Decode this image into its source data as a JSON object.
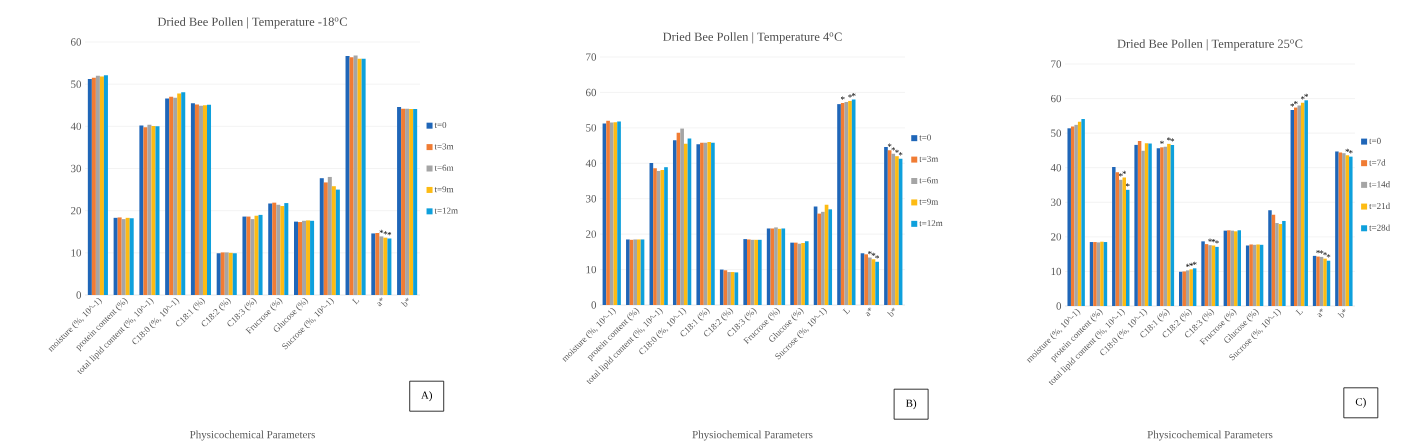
{
  "chart_data": [
    {
      "type": "bar",
      "title": "Dried Bee Pollen | Temperature -18$^{o}$C",
      "xlabel": "Physicochemical Parameters",
      "categories": [
        "moisture (%, 10^-1)",
        "protein content (%)",
        "total lipid content (%, 10^-1)",
        "C18:0 (%, 10^-1)",
        "C18:1 (%)",
        "C18:2 (%)",
        "C18:3 (%)",
        "Frucrose (%)",
        "Glucose (%)",
        "Sucrose (%, 10^-1)",
        "L",
        "a*",
        "b*"
      ],
      "series": [
        {
          "name": "t=0",
          "color": "#1f66b8",
          "values": [
            51.2,
            18.3,
            40.2,
            46.6,
            45.5,
            9.9,
            18.6,
            21.7,
            17.4,
            27.7,
            56.7,
            14.6,
            44.6
          ]
        },
        {
          "name": "t=3m",
          "color": "#f07c34",
          "values": [
            51.5,
            18.4,
            39.8,
            47.0,
            45.2,
            10.1,
            18.6,
            21.9,
            17.3,
            26.7,
            56.4,
            14.7,
            44.2
          ]
        },
        {
          "name": "t=6m",
          "color": "#a5a5a5",
          "values": [
            52.0,
            18.0,
            40.4,
            46.8,
            44.9,
            10.1,
            18.0,
            21.4,
            17.6,
            28.0,
            56.8,
            13.9,
            44.2
          ],
          "value_labels": [
            null,
            null,
            null,
            null,
            null,
            null,
            null,
            null,
            null,
            null,
            null,
            "*",
            null
          ]
        },
        {
          "name": "t=9m",
          "color": "#fdbb13",
          "values": [
            51.8,
            18.3,
            40.1,
            47.8,
            45.0,
            10.0,
            18.8,
            21.1,
            17.7,
            25.8,
            56.0,
            13.6,
            44.1
          ],
          "value_labels": [
            null,
            null,
            null,
            null,
            null,
            null,
            null,
            null,
            null,
            null,
            null,
            "*",
            null
          ]
        },
        {
          "name": "t=12m",
          "color": "#0ea0dc",
          "values": [
            52.1,
            18.2,
            40.0,
            48.1,
            45.1,
            9.9,
            19.0,
            21.8,
            17.6,
            25.0,
            56.0,
            13.4,
            44.1
          ],
          "value_labels": [
            null,
            null,
            null,
            null,
            null,
            null,
            null,
            null,
            null,
            null,
            null,
            "*",
            null
          ]
        }
      ],
      "ylim": [
        0,
        60
      ],
      "yticks": [
        0,
        10,
        20,
        30,
        40,
        50,
        60
      ],
      "grid": "y",
      "legend": "right",
      "annotations": [
        "A)"
      ]
    },
    {
      "type": "bar",
      "title": "Dried Bee Pollen | Temperature 4$^{o}$C",
      "xlabel": "Physiochemical Parameters",
      "categories": [
        "moisture (%, 10^-1)",
        "protein content (%)",
        "total lipid content (%, 10^-1)",
        "C18:0 (%, 10^-1)",
        "C18:1 (%)",
        "C18:2 (%)",
        "C18:3 (%)",
        "Frucrose (%)",
        "Glucose (%)",
        "Sucrose (%, 10^-1)",
        "L",
        "a*",
        "b*"
      ],
      "series": [
        {
          "name": "t=0",
          "color": "#1f66b8",
          "values": [
            51.2,
            18.5,
            40.1,
            46.5,
            45.4,
            10.0,
            18.6,
            21.6,
            17.6,
            27.8,
            56.7,
            14.6,
            44.6
          ]
        },
        {
          "name": "t=3m",
          "color": "#f07c34",
          "values": [
            52.0,
            18.4,
            38.6,
            48.6,
            45.8,
            9.8,
            18.5,
            21.6,
            17.6,
            25.8,
            57.0,
            14.3,
            43.7
          ],
          "value_labels": [
            null,
            null,
            null,
            null,
            null,
            null,
            null,
            null,
            null,
            null,
            "*",
            null,
            "*"
          ]
        },
        {
          "name": "t=6m",
          "color": "#a5a5a5",
          "values": [
            51.5,
            18.5,
            37.8,
            49.8,
            45.8,
            9.3,
            18.4,
            21.9,
            17.3,
            26.3,
            57.3,
            13.4,
            42.7
          ],
          "value_labels": [
            null,
            null,
            null,
            null,
            null,
            null,
            null,
            null,
            null,
            null,
            null,
            "*",
            "*"
          ]
        },
        {
          "name": "t=9m",
          "color": "#fdbb13",
          "values": [
            51.6,
            18.5,
            38.1,
            45.5,
            46.0,
            9.3,
            18.4,
            21.5,
            17.5,
            28.3,
            57.6,
            12.9,
            42.0
          ],
          "value_labels": [
            null,
            null,
            null,
            null,
            null,
            null,
            null,
            null,
            null,
            null,
            "*",
            "*",
            "*"
          ]
        },
        {
          "name": "t=12m",
          "color": "#0ea0dc",
          "values": [
            51.8,
            18.5,
            38.9,
            47.0,
            45.8,
            9.2,
            18.4,
            21.6,
            18.0,
            27.0,
            58.0,
            12.2,
            41.3
          ],
          "value_labels": [
            null,
            null,
            null,
            null,
            null,
            null,
            null,
            null,
            null,
            null,
            "*",
            "*",
            "*"
          ]
        }
      ],
      "ylim": [
        0,
        70
      ],
      "yticks": [
        0,
        10,
        20,
        30,
        40,
        50,
        60,
        70
      ],
      "grid": "y",
      "legend": "right",
      "annotations": [
        "B)"
      ]
    },
    {
      "type": "bar",
      "title": "Dried Bee Pollen | Temperature 25$^{o}$C",
      "xlabel": "Physicochemical Parameters",
      "categories": [
        "moisture (%, 10^-1)",
        "protein content (%)",
        "total lipid content (%, 10^-1)",
        "C18:0 (%, 10^-1)",
        "C18:1 (%)",
        "C18:2 (%)",
        "C18:3 (%)",
        "Frucrose (%)",
        "Glucose (%)",
        "Sucrose (%, 10^-1)",
        "L",
        "a*",
        "b*"
      ],
      "series": [
        {
          "name": "t=0",
          "color": "#1f66b8",
          "values": [
            51.4,
            18.5,
            40.2,
            46.6,
            45.6,
            9.9,
            18.7,
            21.8,
            17.5,
            27.7,
            56.7,
            14.5,
            44.7
          ],
          "value_labels": [
            null,
            null,
            null,
            null,
            null,
            null,
            null,
            null,
            null,
            null,
            "*",
            null,
            null
          ]
        },
        {
          "name": "t=7d",
          "color": "#f07c34",
          "values": [
            51.9,
            18.5,
            38.7,
            47.7,
            45.9,
            10.0,
            17.9,
            21.9,
            17.8,
            26.4,
            57.4,
            14.3,
            44.4
          ],
          "value_labels": [
            null,
            null,
            null,
            null,
            "*",
            null,
            null,
            null,
            null,
            null,
            "*",
            "*",
            null
          ]
        },
        {
          "name": "t=14d",
          "color": "#a5a5a5",
          "values": [
            52.4,
            18.4,
            36.5,
            44.9,
            46.1,
            10.3,
            17.6,
            21.8,
            17.7,
            24.0,
            58.0,
            14.2,
            44.2
          ],
          "value_labels": [
            null,
            null,
            "*",
            null,
            null,
            "*",
            "*",
            null,
            null,
            null,
            null,
            "*",
            null
          ]
        },
        {
          "name": "t=21d",
          "color": "#fdbb13",
          "values": [
            53.3,
            18.6,
            37.2,
            47.1,
            46.9,
            10.6,
            17.5,
            21.6,
            17.8,
            23.7,
            58.8,
            13.7,
            43.6
          ],
          "value_labels": [
            null,
            null,
            "*",
            null,
            "*",
            "*",
            "*",
            null,
            null,
            null,
            "*",
            "*",
            "*"
          ]
        },
        {
          "name": "t=28d",
          "color": "#0ea0dc",
          "values": [
            54.1,
            18.5,
            33.6,
            47.0,
            46.6,
            10.9,
            17.1,
            21.9,
            17.7,
            24.6,
            59.5,
            13.1,
            43.2
          ],
          "value_labels": [
            null,
            null,
            "*",
            null,
            "*",
            "*",
            "*",
            null,
            null,
            null,
            "*",
            "*",
            "*"
          ]
        }
      ],
      "ylim": [
        0,
        70
      ],
      "yticks": [
        0,
        10,
        20,
        30,
        40,
        50,
        60,
        70
      ],
      "grid": "y",
      "legend": "right",
      "annotations": [
        "C)"
      ]
    }
  ]
}
